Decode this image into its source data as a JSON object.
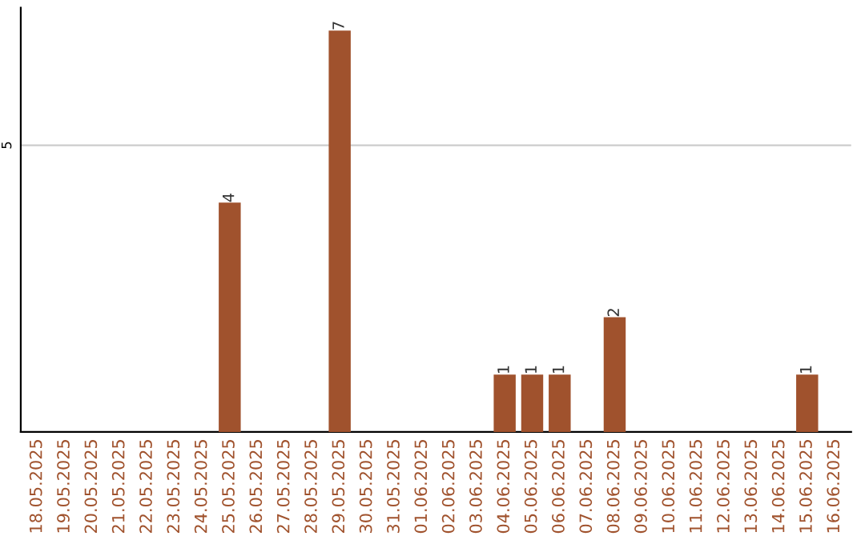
{
  "chart_data": {
    "type": "bar",
    "categories": [
      "18.05.2025",
      "19.05.2025",
      "20.05.2025",
      "21.05.2025",
      "22.05.2025",
      "23.05.2025",
      "24.05.2025",
      "25.05.2025",
      "26.05.2025",
      "27.05.2025",
      "28.05.2025",
      "29.05.2025",
      "30.05.2025",
      "31.05.2025",
      "01.06.2025",
      "02.06.2025",
      "03.06.2025",
      "04.06.2025",
      "05.06.2025",
      "06.06.2025",
      "07.06.2025",
      "08.06.2025",
      "09.06.2025",
      "10.06.2025",
      "11.06.2025",
      "12.06.2025",
      "13.06.2025",
      "14.06.2025",
      "15.06.2025",
      "16.06.2025"
    ],
    "values": [
      0,
      0,
      0,
      0,
      0,
      0,
      0,
      4,
      0,
      0,
      0,
      7,
      0,
      0,
      0,
      0,
      0,
      1,
      1,
      1,
      0,
      2,
      0,
      0,
      0,
      0,
      0,
      0,
      1,
      0
    ],
    "value_labels": [
      null,
      null,
      null,
      null,
      null,
      null,
      null,
      "4",
      null,
      null,
      null,
      "7",
      null,
      null,
      null,
      null,
      null,
      "1",
      "1",
      "1",
      null,
      "2",
      null,
      null,
      null,
      null,
      null,
      null,
      "1",
      null
    ],
    "color": "#a0522d",
    "ylim": [
      0,
      7.4
    ],
    "yticks": [
      5
    ],
    "grid": "y"
  }
}
